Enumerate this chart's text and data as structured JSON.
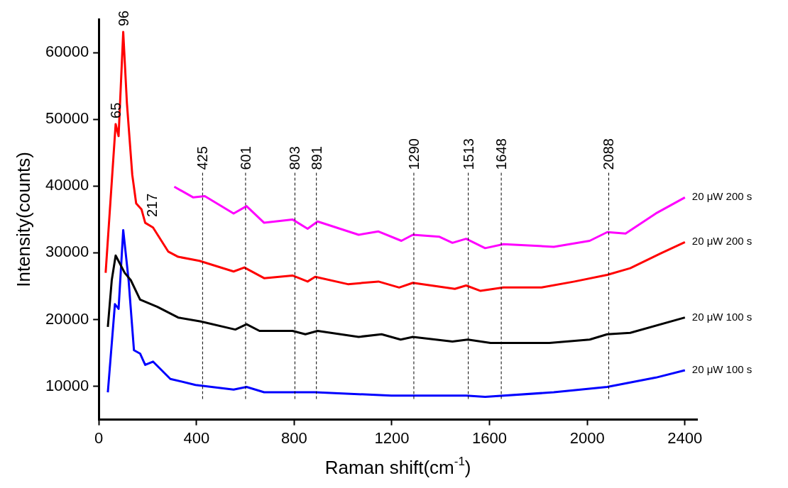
{
  "chart_data": {
    "type": "line",
    "xlabel": "Raman shift(cm$^{-1}$)",
    "ylabel": "Intensity(counts)",
    "xlim": [
      0,
      2450
    ],
    "xticks": [
      0,
      400,
      800,
      1200,
      1600,
      2000,
      2400
    ],
    "ylim": [
      5000,
      65000
    ],
    "yticks": [
      10000,
      20000,
      30000,
      40000,
      50000,
      60000
    ],
    "grid": false,
    "legend": false,
    "marker": "none",
    "line_style": "solid",
    "series": [
      {
        "name": "20 μW 200 s",
        "color": "#ff00ff",
        "x": [
          309,
          387,
          434,
          552,
          605,
          677,
          793,
          855,
          896,
          1064,
          1145,
          1239,
          1286,
          1395,
          1448,
          1504,
          1582,
          1657,
          1863,
          2010,
          2082,
          2157,
          2281,
          2400
        ],
        "values": [
          39900,
          38300,
          38500,
          35900,
          37000,
          34500,
          35000,
          33600,
          34700,
          32700,
          33200,
          31800,
          32700,
          32400,
          31500,
          32100,
          30700,
          31300,
          30900,
          31800,
          33100,
          32900,
          35900,
          38300
        ]
      },
      {
        "name": "20 μW 200 s",
        "color": "#ff0000",
        "x": [
          28,
          69,
          81,
          100,
          115,
          137,
          153,
          175,
          190,
          222,
          284,
          325,
          412,
          552,
          596,
          677,
          793,
          855,
          886,
          1020,
          1145,
          1230,
          1286,
          1458,
          1504,
          1563,
          1657,
          1813,
          1948,
          2082,
          2176,
          2300,
          2400
        ],
        "values": [
          27000,
          49300,
          47500,
          63100,
          52500,
          41700,
          37400,
          36500,
          34500,
          33800,
          30200,
          29400,
          28800,
          27200,
          27800,
          26200,
          26600,
          25700,
          26400,
          25300,
          25700,
          24800,
          25500,
          24600,
          25100,
          24300,
          24800,
          24800,
          25700,
          26700,
          27700,
          29900,
          31600
        ]
      },
      {
        "name": "20 μW 100 s",
        "color": "#000000",
        "x": [
          37,
          53,
          69,
          106,
          131,
          169,
          240,
          325,
          418,
          559,
          605,
          658,
          793,
          846,
          896,
          1064,
          1158,
          1236,
          1286,
          1448,
          1511,
          1604,
          1845,
          2010,
          2082,
          2176,
          2400
        ],
        "values": [
          18900,
          25900,
          29600,
          27000,
          25900,
          23000,
          21900,
          20300,
          19700,
          18500,
          19300,
          18300,
          18300,
          17800,
          18300,
          17400,
          17800,
          17000,
          17400,
          16700,
          17000,
          16500,
          16500,
          17000,
          17800,
          18000,
          20300
        ]
      },
      {
        "name": "20 μW 100 s",
        "color": "#0000ff",
        "x": [
          37,
          66,
          81,
          100,
          122,
          144,
          169,
          190,
          222,
          293,
          396,
          552,
          605,
          677,
          886,
          1198,
          1504,
          1582,
          1863,
          2082,
          2281,
          2400
        ],
        "values": [
          9100,
          22300,
          21600,
          33400,
          25900,
          15400,
          14900,
          13200,
          13700,
          11100,
          10200,
          9500,
          9900,
          9100,
          9100,
          8600,
          8600,
          8400,
          9100,
          9900,
          11300,
          12400
        ]
      }
    ],
    "ref_lines": [
      {
        "axis": "x",
        "value": 425,
        "label": "425",
        "line_style": "dashed",
        "color": "#000000"
      },
      {
        "axis": "x",
        "value": 601,
        "label": "601",
        "line_style": "dashed",
        "color": "#000000"
      },
      {
        "axis": "x",
        "value": 803,
        "label": "803",
        "line_style": "dashed",
        "color": "#000000"
      },
      {
        "axis": "x",
        "value": 891,
        "label": "891",
        "line_style": "dashed",
        "color": "#000000"
      },
      {
        "axis": "x",
        "value": 1290,
        "label": "1290",
        "line_style": "dashed",
        "color": "#000000"
      },
      {
        "axis": "x",
        "value": 1513,
        "label": "1513",
        "line_style": "dashed",
        "color": "#000000"
      },
      {
        "axis": "x",
        "value": 1648,
        "label": "1648",
        "line_style": "dashed",
        "color": "#000000"
      },
      {
        "axis": "x",
        "value": 2088,
        "label": "2088",
        "line_style": "dashed",
        "color": "#000000"
      }
    ],
    "annotations": [
      {
        "text": "65",
        "x": 69,
        "y": 49300
      },
      {
        "text": "96",
        "x": 100,
        "y": 63100
      },
      {
        "text": "217",
        "x": 217,
        "y": 34500
      }
    ]
  }
}
